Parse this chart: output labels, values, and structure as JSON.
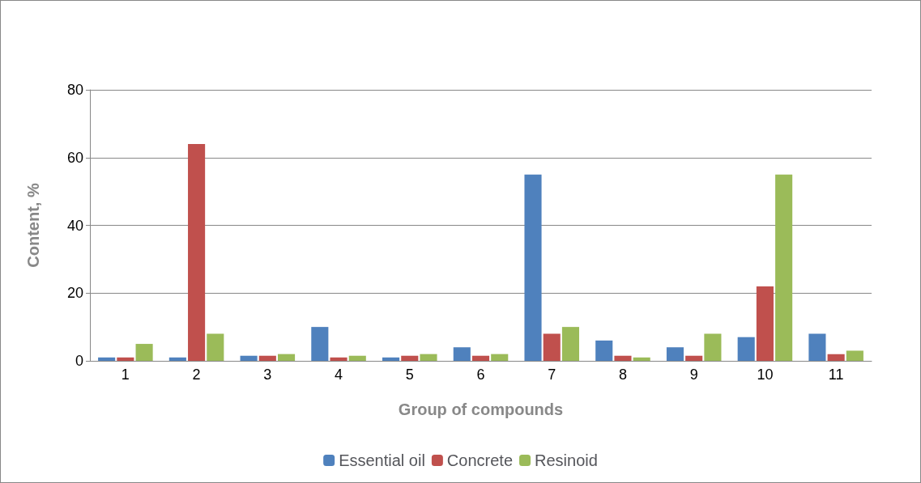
{
  "chart_data": {
    "type": "bar",
    "xlabel": "Group of compounds",
    "ylabel": "Content, %",
    "categories": [
      "1",
      "2",
      "3",
      "4",
      "5",
      "6",
      "7",
      "8",
      "9",
      "10",
      "11"
    ],
    "series": [
      {
        "name": "Essential oil",
        "color": "#4f81bd",
        "values": [
          1,
          1,
          1.5,
          10,
          1,
          4,
          55,
          6,
          4,
          7,
          8
        ]
      },
      {
        "name": "Concrete",
        "color": "#c0504d",
        "values": [
          1,
          64,
          1.5,
          1,
          1.5,
          1.5,
          8,
          1.5,
          1.5,
          22,
          2
        ]
      },
      {
        "name": "Resinoid",
        "color": "#9bbb59",
        "values": [
          5,
          8,
          2,
          1.5,
          2,
          2,
          10,
          1,
          8,
          55,
          3
        ]
      }
    ],
    "ylim": [
      0,
      80
    ],
    "yticks": [
      0,
      20,
      40,
      60,
      80
    ],
    "grid": "y",
    "legend": "bottom"
  }
}
